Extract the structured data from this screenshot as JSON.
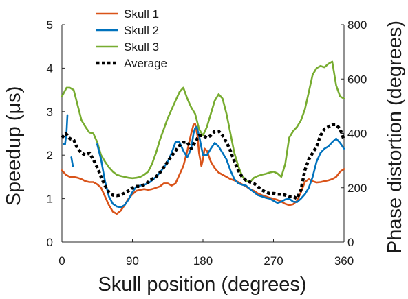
{
  "chart_data": {
    "type": "line",
    "xlabel": "Skull position (degrees)",
    "ylabel": "Speedup (μs)",
    "y2label": "Phase distortion (degrees)",
    "xlim": [
      0,
      360
    ],
    "ylim": [
      0,
      5
    ],
    "y2lim": [
      0,
      800
    ],
    "x_ticks": [
      "0",
      "90",
      "180",
      "270",
      "360"
    ],
    "y_ticks": [
      "0",
      "1",
      "2",
      "3",
      "4",
      "5"
    ],
    "y2_ticks": [
      "0",
      "200",
      "400",
      "600",
      "800"
    ],
    "grid": false,
    "legend_position": "top-left",
    "series": [
      {
        "name": "Skull 1",
        "color": "#d95319",
        "dash": "solid",
        "x": [
          0,
          5,
          10,
          15,
          20,
          25,
          30,
          35,
          40,
          45,
          50,
          55,
          60,
          65,
          70,
          75,
          80,
          85,
          90,
          95,
          100,
          105,
          110,
          115,
          120,
          125,
          130,
          135,
          140,
          145,
          150,
          155,
          160,
          165,
          168,
          170,
          173,
          175,
          178,
          180,
          182,
          185,
          190,
          195,
          200,
          205,
          210,
          215,
          220,
          225,
          230,
          235,
          240,
          245,
          250,
          255,
          260,
          265,
          270,
          275,
          280,
          285,
          290,
          295,
          300,
          305,
          310,
          315,
          320,
          325,
          330,
          335,
          340,
          345,
          350,
          355,
          360
        ],
        "values": [
          1.65,
          1.55,
          1.5,
          1.5,
          1.48,
          1.45,
          1.4,
          1.38,
          1.38,
          1.33,
          1.25,
          1.05,
          0.85,
          0.7,
          0.65,
          0.72,
          0.85,
          1.0,
          1.1,
          1.18,
          1.2,
          1.22,
          1.2,
          1.22,
          1.25,
          1.28,
          1.35,
          1.35,
          1.3,
          1.35,
          1.55,
          1.75,
          2.1,
          2.5,
          2.7,
          2.72,
          2.45,
          2.05,
          1.75,
          1.9,
          2.15,
          2.1,
          1.85,
          1.7,
          1.6,
          1.55,
          1.5,
          1.45,
          1.42,
          1.38,
          1.33,
          1.28,
          1.22,
          1.18,
          1.12,
          1.08,
          1.05,
          1.02,
          1.0,
          0.97,
          0.93,
          0.88,
          0.85,
          0.87,
          0.95,
          1.15,
          1.38,
          1.45,
          1.4,
          1.37,
          1.38,
          1.4,
          1.42,
          1.45,
          1.5,
          1.62,
          1.68
        ]
      },
      {
        "name": "Skull 2",
        "color": "#0072bd",
        "dash": "solid",
        "segments": [
          {
            "x": [
              2,
              4,
              6,
              7
            ],
            "values": [
              2.25,
              2.25,
              2.55,
              2.92
            ]
          },
          {
            "x": [
              12,
              14
            ],
            "values": [
              1.95,
              1.75
            ]
          },
          {
            "x": [
              45,
              50,
              55,
              60,
              65,
              70,
              75,
              80,
              85,
              90,
              95,
              100,
              105,
              110,
              115,
              120,
              125,
              130,
              135,
              140,
              145,
              150,
              155,
              160,
              165,
              168,
              170,
              172,
              175,
              180,
              185,
              190,
              195,
              200,
              205,
              210,
              215,
              220,
              225,
              230,
              235,
              240,
              245,
              250,
              255,
              260,
              265,
              270,
              275,
              280,
              285,
              290,
              295,
              300,
              305,
              310,
              315,
              320,
              325,
              330,
              335,
              340,
              345,
              350,
              355,
              360
            ],
            "values": [
              2.25,
              1.9,
              1.4,
              1.05,
              0.88,
              0.82,
              0.8,
              0.85,
              0.98,
              1.15,
              1.28,
              1.3,
              1.32,
              1.35,
              1.42,
              1.5,
              1.6,
              1.72,
              1.85,
              2.05,
              2.3,
              2.3,
              2.1,
              1.95,
              2.15,
              2.5,
              2.62,
              2.65,
              2.45,
              2.0,
              2.0,
              2.15,
              2.28,
              2.2,
              2.05,
              1.9,
              1.65,
              1.45,
              1.35,
              1.32,
              1.3,
              1.22,
              1.15,
              1.08,
              1.05,
              1.02,
              1.0,
              0.95,
              0.9,
              0.93,
              0.98,
              1.0,
              0.93,
              0.92,
              1.0,
              1.1,
              1.25,
              1.5,
              1.85,
              2.05,
              2.15,
              2.2,
              2.3,
              2.38,
              2.28,
              2.15
            ]
          }
        ]
      },
      {
        "name": "Skull 3",
        "color": "#77ac30",
        "dash": "solid",
        "x": [
          0,
          3,
          6,
          10,
          15,
          20,
          25,
          30,
          35,
          40,
          45,
          50,
          55,
          60,
          65,
          70,
          75,
          80,
          85,
          90,
          95,
          100,
          105,
          110,
          115,
          120,
          125,
          130,
          135,
          140,
          145,
          150,
          155,
          160,
          165,
          170,
          175,
          180,
          185,
          190,
          195,
          200,
          205,
          210,
          215,
          220,
          225,
          230,
          235,
          240,
          245,
          250,
          255,
          260,
          265,
          270,
          275,
          280,
          285,
          290,
          295,
          300,
          305,
          310,
          315,
          320,
          325,
          330,
          335,
          340,
          345,
          350,
          355,
          360
        ],
        "values": [
          3.35,
          3.45,
          3.55,
          3.55,
          3.5,
          3.15,
          2.8,
          2.65,
          2.52,
          2.5,
          2.3,
          2.0,
          1.85,
          1.72,
          1.62,
          1.55,
          1.52,
          1.5,
          1.48,
          1.47,
          1.48,
          1.5,
          1.55,
          1.62,
          1.8,
          2.05,
          2.35,
          2.6,
          2.85,
          3.05,
          3.25,
          3.45,
          3.55,
          3.3,
          3.1,
          2.95,
          2.6,
          2.45,
          2.65,
          2.95,
          3.25,
          3.4,
          3.3,
          2.95,
          2.5,
          2.05,
          1.75,
          1.52,
          1.4,
          1.38,
          1.48,
          1.52,
          1.55,
          1.57,
          1.6,
          1.62,
          1.58,
          1.5,
          1.8,
          2.4,
          2.55,
          2.65,
          2.8,
          3.05,
          3.45,
          3.85,
          4.0,
          4.05,
          4.02,
          4.1,
          4.15,
          3.6,
          3.35,
          3.3
        ]
      },
      {
        "name": "Average",
        "color": "#000000",
        "dash": "dotted",
        "x": [
          0,
          5,
          10,
          15,
          20,
          25,
          30,
          35,
          40,
          45,
          50,
          55,
          60,
          65,
          70,
          75,
          80,
          85,
          90,
          95,
          100,
          105,
          110,
          115,
          120,
          125,
          130,
          135,
          140,
          145,
          150,
          155,
          160,
          165,
          170,
          175,
          180,
          185,
          190,
          195,
          200,
          205,
          210,
          215,
          220,
          225,
          230,
          235,
          240,
          245,
          250,
          255,
          260,
          265,
          270,
          275,
          280,
          285,
          290,
          295,
          300,
          305,
          310,
          315,
          320,
          325,
          330,
          335,
          340,
          345,
          350,
          355,
          360
        ],
        "values": [
          2.4,
          2.5,
          2.38,
          2.35,
          2.15,
          2.05,
          2.0,
          2.05,
          1.9,
          1.72,
          1.5,
          1.3,
          1.15,
          1.08,
          1.07,
          1.08,
          1.13,
          1.18,
          1.25,
          1.28,
          1.28,
          1.32,
          1.38,
          1.45,
          1.5,
          1.6,
          1.72,
          1.85,
          1.98,
          2.1,
          2.22,
          2.3,
          2.3,
          2.15,
          2.3,
          2.45,
          2.45,
          2.4,
          2.45,
          2.55,
          2.55,
          2.45,
          2.3,
          2.1,
          1.85,
          1.65,
          1.5,
          1.42,
          1.38,
          1.35,
          1.28,
          1.2,
          1.15,
          1.12,
          1.12,
          1.1,
          1.1,
          1.08,
          1.05,
          1.05,
          1.0,
          1.2,
          1.65,
          1.9,
          2.05,
          2.2,
          2.45,
          2.6,
          2.65,
          2.7,
          2.7,
          2.6,
          2.35
        ]
      }
    ]
  }
}
